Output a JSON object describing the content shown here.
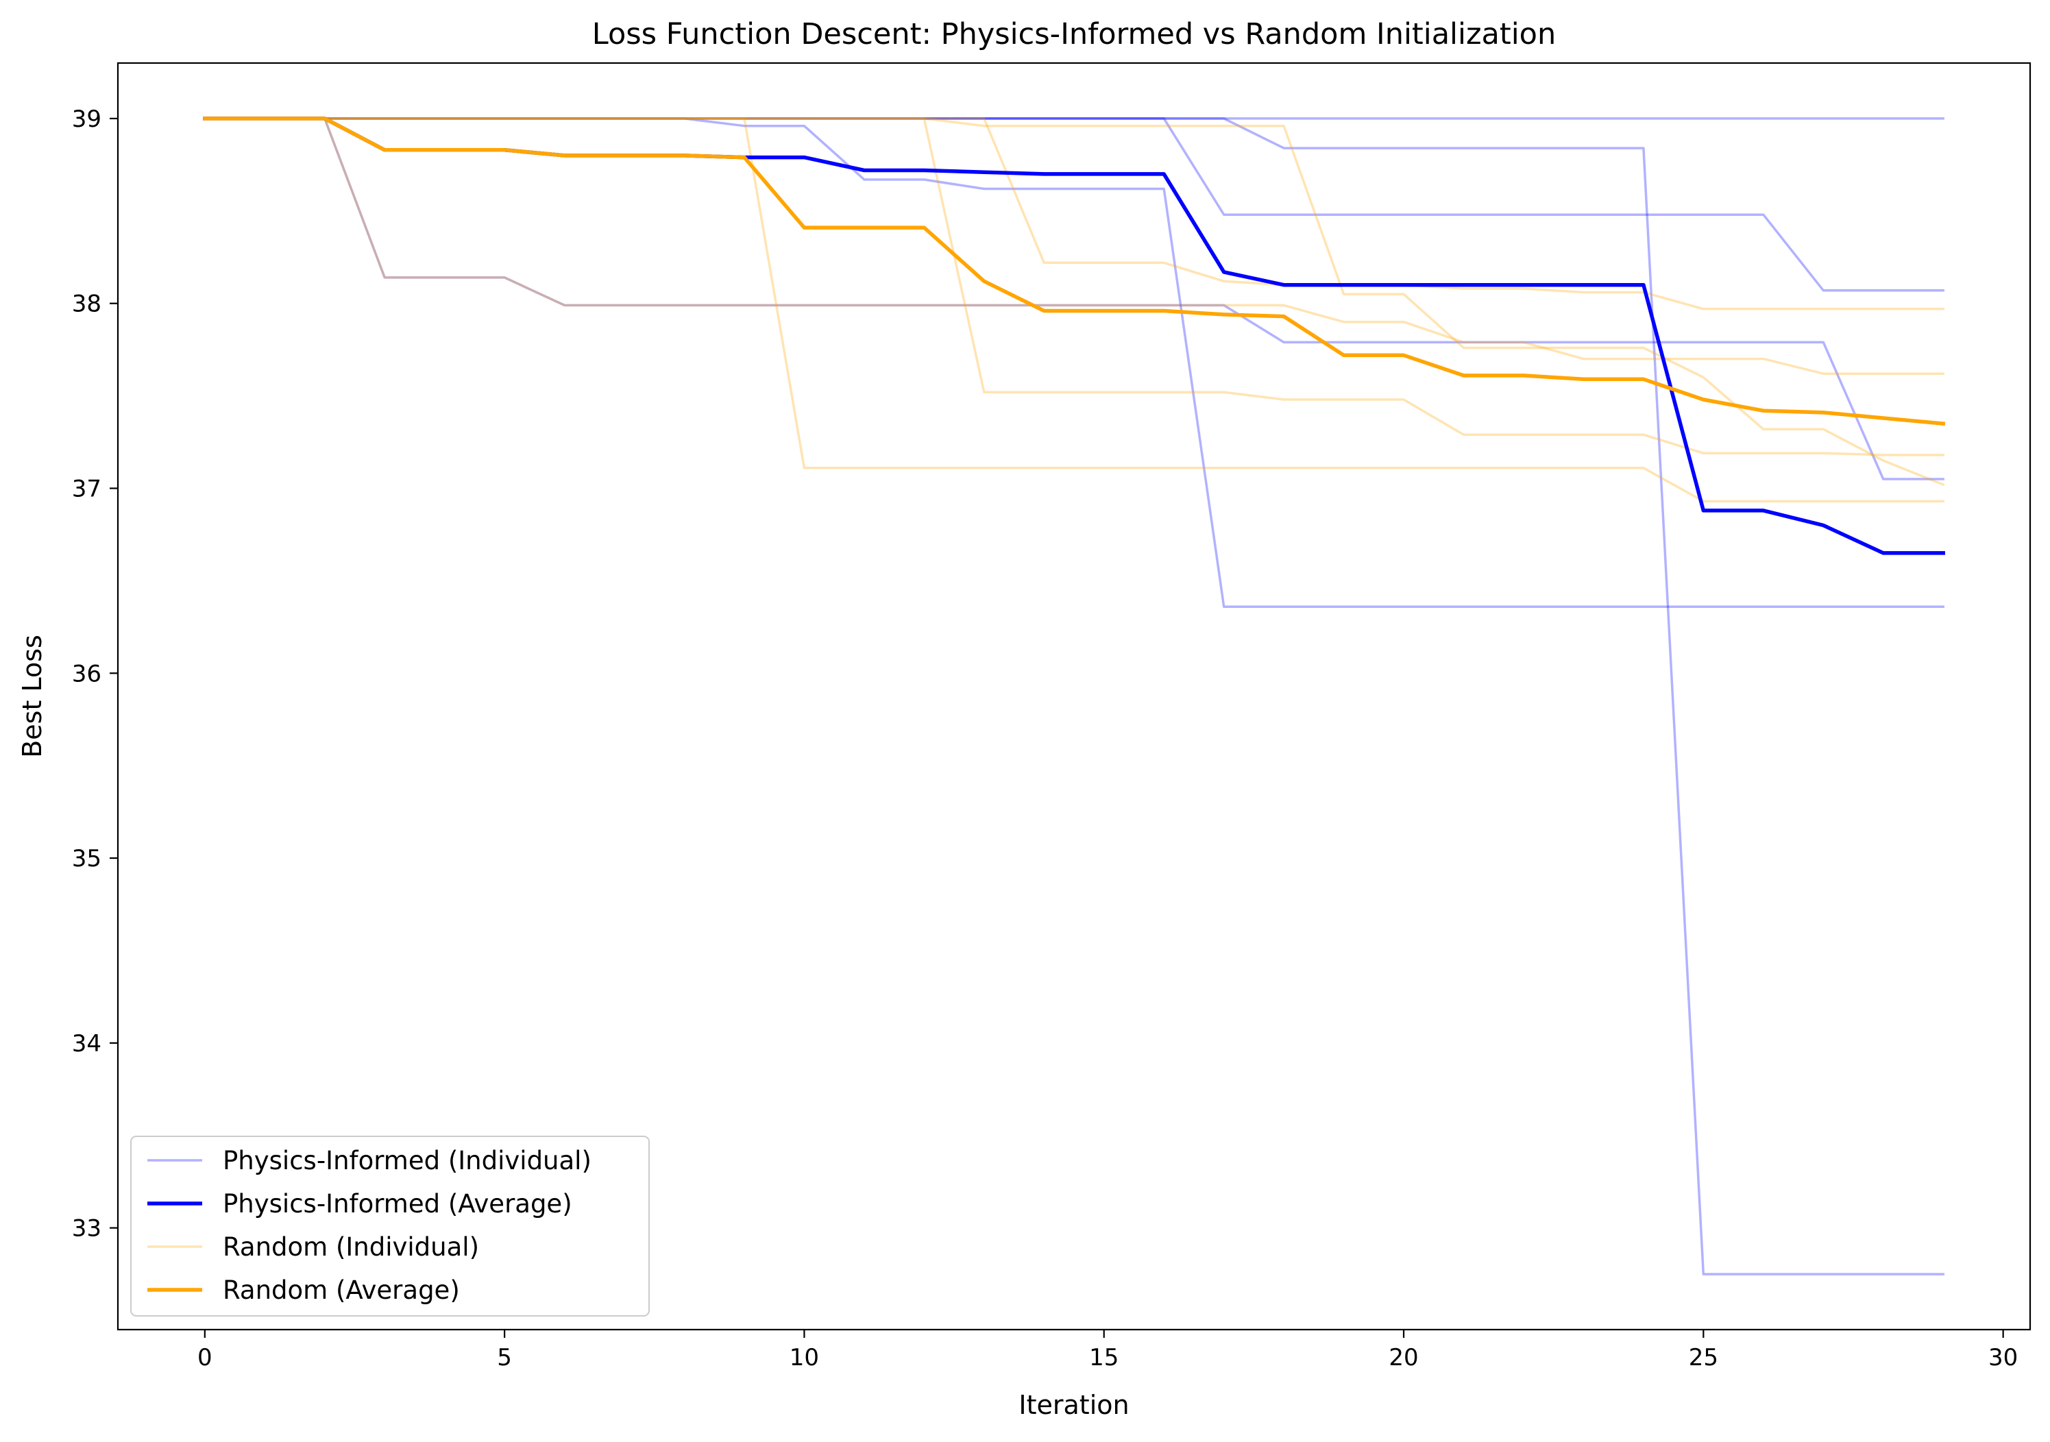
{
  "chart_data": {
    "type": "line",
    "title": "Loss Function Descent: Physics-Informed vs Random Initialization",
    "xlabel": "Iteration",
    "ylabel": "Best Loss",
    "xlim": [
      -1.45,
      30.45
    ],
    "ylim": [
      32.45,
      39.3
    ],
    "x_ticks": [
      0,
      5,
      10,
      15,
      20,
      25,
      30
    ],
    "y_ticks": [
      33,
      34,
      35,
      36,
      37,
      38,
      39
    ],
    "grid": false,
    "legend_position": "lower-left",
    "legend": [
      {
        "label": "Physics-Informed (Individual)",
        "color": "#0000ff",
        "opacity": 0.3,
        "width": 3.5
      },
      {
        "label": "Physics-Informed (Average)",
        "color": "#0000ff",
        "opacity": 1,
        "width": 5.5
      },
      {
        "label": "Random (Individual)",
        "color": "#ffa500",
        "opacity": 0.3,
        "width": 3.5
      },
      {
        "label": "Random (Average)",
        "color": "#ffa500",
        "opacity": 1,
        "width": 5.5
      }
    ],
    "x": [
      0,
      1,
      2,
      3,
      4,
      5,
      6,
      7,
      8,
      9,
      10,
      11,
      12,
      13,
      14,
      15,
      16,
      17,
      18,
      19,
      20,
      21,
      22,
      23,
      24,
      25,
      26,
      27,
      28,
      29
    ],
    "series": [
      {
        "group": "physics_individual",
        "values": [
          39,
          39,
          39,
          39,
          39,
          39,
          39,
          39,
          39,
          39,
          39,
          39,
          39,
          39,
          39,
          39,
          39,
          39,
          39,
          39,
          39,
          39,
          39,
          39,
          39,
          39,
          39,
          39,
          39,
          39
        ]
      },
      {
        "group": "physics_individual",
        "values": [
          39,
          39,
          39,
          39,
          39,
          39,
          39,
          39,
          39,
          39,
          39,
          39,
          39,
          39,
          39,
          39,
          39,
          39,
          38.84,
          38.84,
          38.84,
          38.84,
          38.84,
          38.84,
          38.84,
          32.75,
          32.75,
          32.75,
          32.75,
          32.75
        ]
      },
      {
        "group": "physics_individual",
        "values": [
          39,
          39,
          39,
          39,
          39,
          39,
          39,
          39,
          39,
          39,
          39,
          39,
          39,
          39,
          39,
          39,
          39,
          38.48,
          38.48,
          38.48,
          38.48,
          38.48,
          38.48,
          38.48,
          38.48,
          38.48,
          38.48,
          38.07,
          38.07,
          38.07
        ]
      },
      {
        "group": "physics_individual",
        "values": [
          39,
          39,
          39,
          39,
          39,
          39,
          39,
          39,
          39,
          38.96,
          38.96,
          38.67,
          38.67,
          38.62,
          38.62,
          38.62,
          38.62,
          36.36,
          36.36,
          36.36,
          36.36,
          36.36,
          36.36,
          36.36,
          36.36,
          36.36,
          36.36,
          36.36,
          36.36,
          36.36
        ]
      },
      {
        "group": "physics_individual",
        "values": [
          39,
          39,
          39,
          38.14,
          38.14,
          38.14,
          37.99,
          37.99,
          37.99,
          37.99,
          37.99,
          37.99,
          37.99,
          37.99,
          37.99,
          37.99,
          37.99,
          37.99,
          37.79,
          37.79,
          37.79,
          37.79,
          37.79,
          37.79,
          37.79,
          37.79,
          37.79,
          37.79,
          37.05,
          37.05
        ]
      },
      {
        "group": "physics_average",
        "values": [
          39,
          39,
          39,
          38.83,
          38.83,
          38.83,
          38.8,
          38.8,
          38.8,
          38.79,
          38.79,
          38.72,
          38.72,
          38.71,
          38.7,
          38.7,
          38.7,
          38.17,
          38.1,
          38.1,
          38.1,
          38.1,
          38.1,
          38.1,
          38.1,
          36.88,
          36.88,
          36.8,
          36.65,
          36.65
        ]
      },
      {
        "group": "random_individual",
        "values": [
          39,
          39,
          39,
          39,
          39,
          39,
          39,
          39,
          39,
          39,
          37.11,
          37.11,
          37.11,
          37.11,
          37.11,
          37.11,
          37.11,
          37.11,
          37.11,
          37.11,
          37.11,
          37.11,
          37.11,
          37.11,
          37.11,
          36.93,
          36.93,
          36.93,
          36.93,
          36.93
        ]
      },
      {
        "group": "random_individual",
        "values": [
          39,
          39,
          39,
          39,
          39,
          39,
          39,
          39,
          39,
          39,
          39,
          39,
          39,
          37.52,
          37.52,
          37.52,
          37.52,
          37.52,
          37.48,
          37.48,
          37.48,
          37.29,
          37.29,
          37.29,
          37.29,
          37.19,
          37.19,
          37.19,
          37.18,
          37.18
        ]
      },
      {
        "group": "random_individual",
        "values": [
          39,
          39,
          39,
          39,
          39,
          39,
          39,
          39,
          39,
          39,
          39,
          39,
          39,
          39,
          38.22,
          38.22,
          38.22,
          38.12,
          38.1,
          38.1,
          38.1,
          38.08,
          38.08,
          38.06,
          38.06,
          37.97,
          37.97,
          37.97,
          37.97,
          37.97
        ]
      },
      {
        "group": "random_individual",
        "values": [
          39,
          39,
          39,
          39,
          39,
          39,
          39,
          39,
          39,
          39,
          39,
          39,
          39,
          38.96,
          38.96,
          38.96,
          38.96,
          38.96,
          38.96,
          38.05,
          38.05,
          37.76,
          37.76,
          37.76,
          37.76,
          37.6,
          37.32,
          37.32,
          37.15,
          37.02
        ]
      },
      {
        "group": "random_individual",
        "values": [
          39,
          39,
          39,
          38.14,
          38.14,
          38.14,
          37.99,
          37.99,
          37.99,
          37.99,
          37.99,
          37.99,
          37.99,
          37.99,
          37.99,
          37.99,
          37.99,
          37.99,
          37.99,
          37.9,
          37.9,
          37.79,
          37.79,
          37.7,
          37.7,
          37.7,
          37.7,
          37.62,
          37.62,
          37.62
        ]
      },
      {
        "group": "random_average",
        "values": [
          39,
          39,
          39,
          38.83,
          38.83,
          38.83,
          38.8,
          38.8,
          38.8,
          38.79,
          38.41,
          38.41,
          38.41,
          38.12,
          37.96,
          37.96,
          37.96,
          37.94,
          37.93,
          37.72,
          37.72,
          37.61,
          37.61,
          37.59,
          37.59,
          37.48,
          37.42,
          37.41,
          37.38,
          37.35
        ]
      }
    ]
  }
}
